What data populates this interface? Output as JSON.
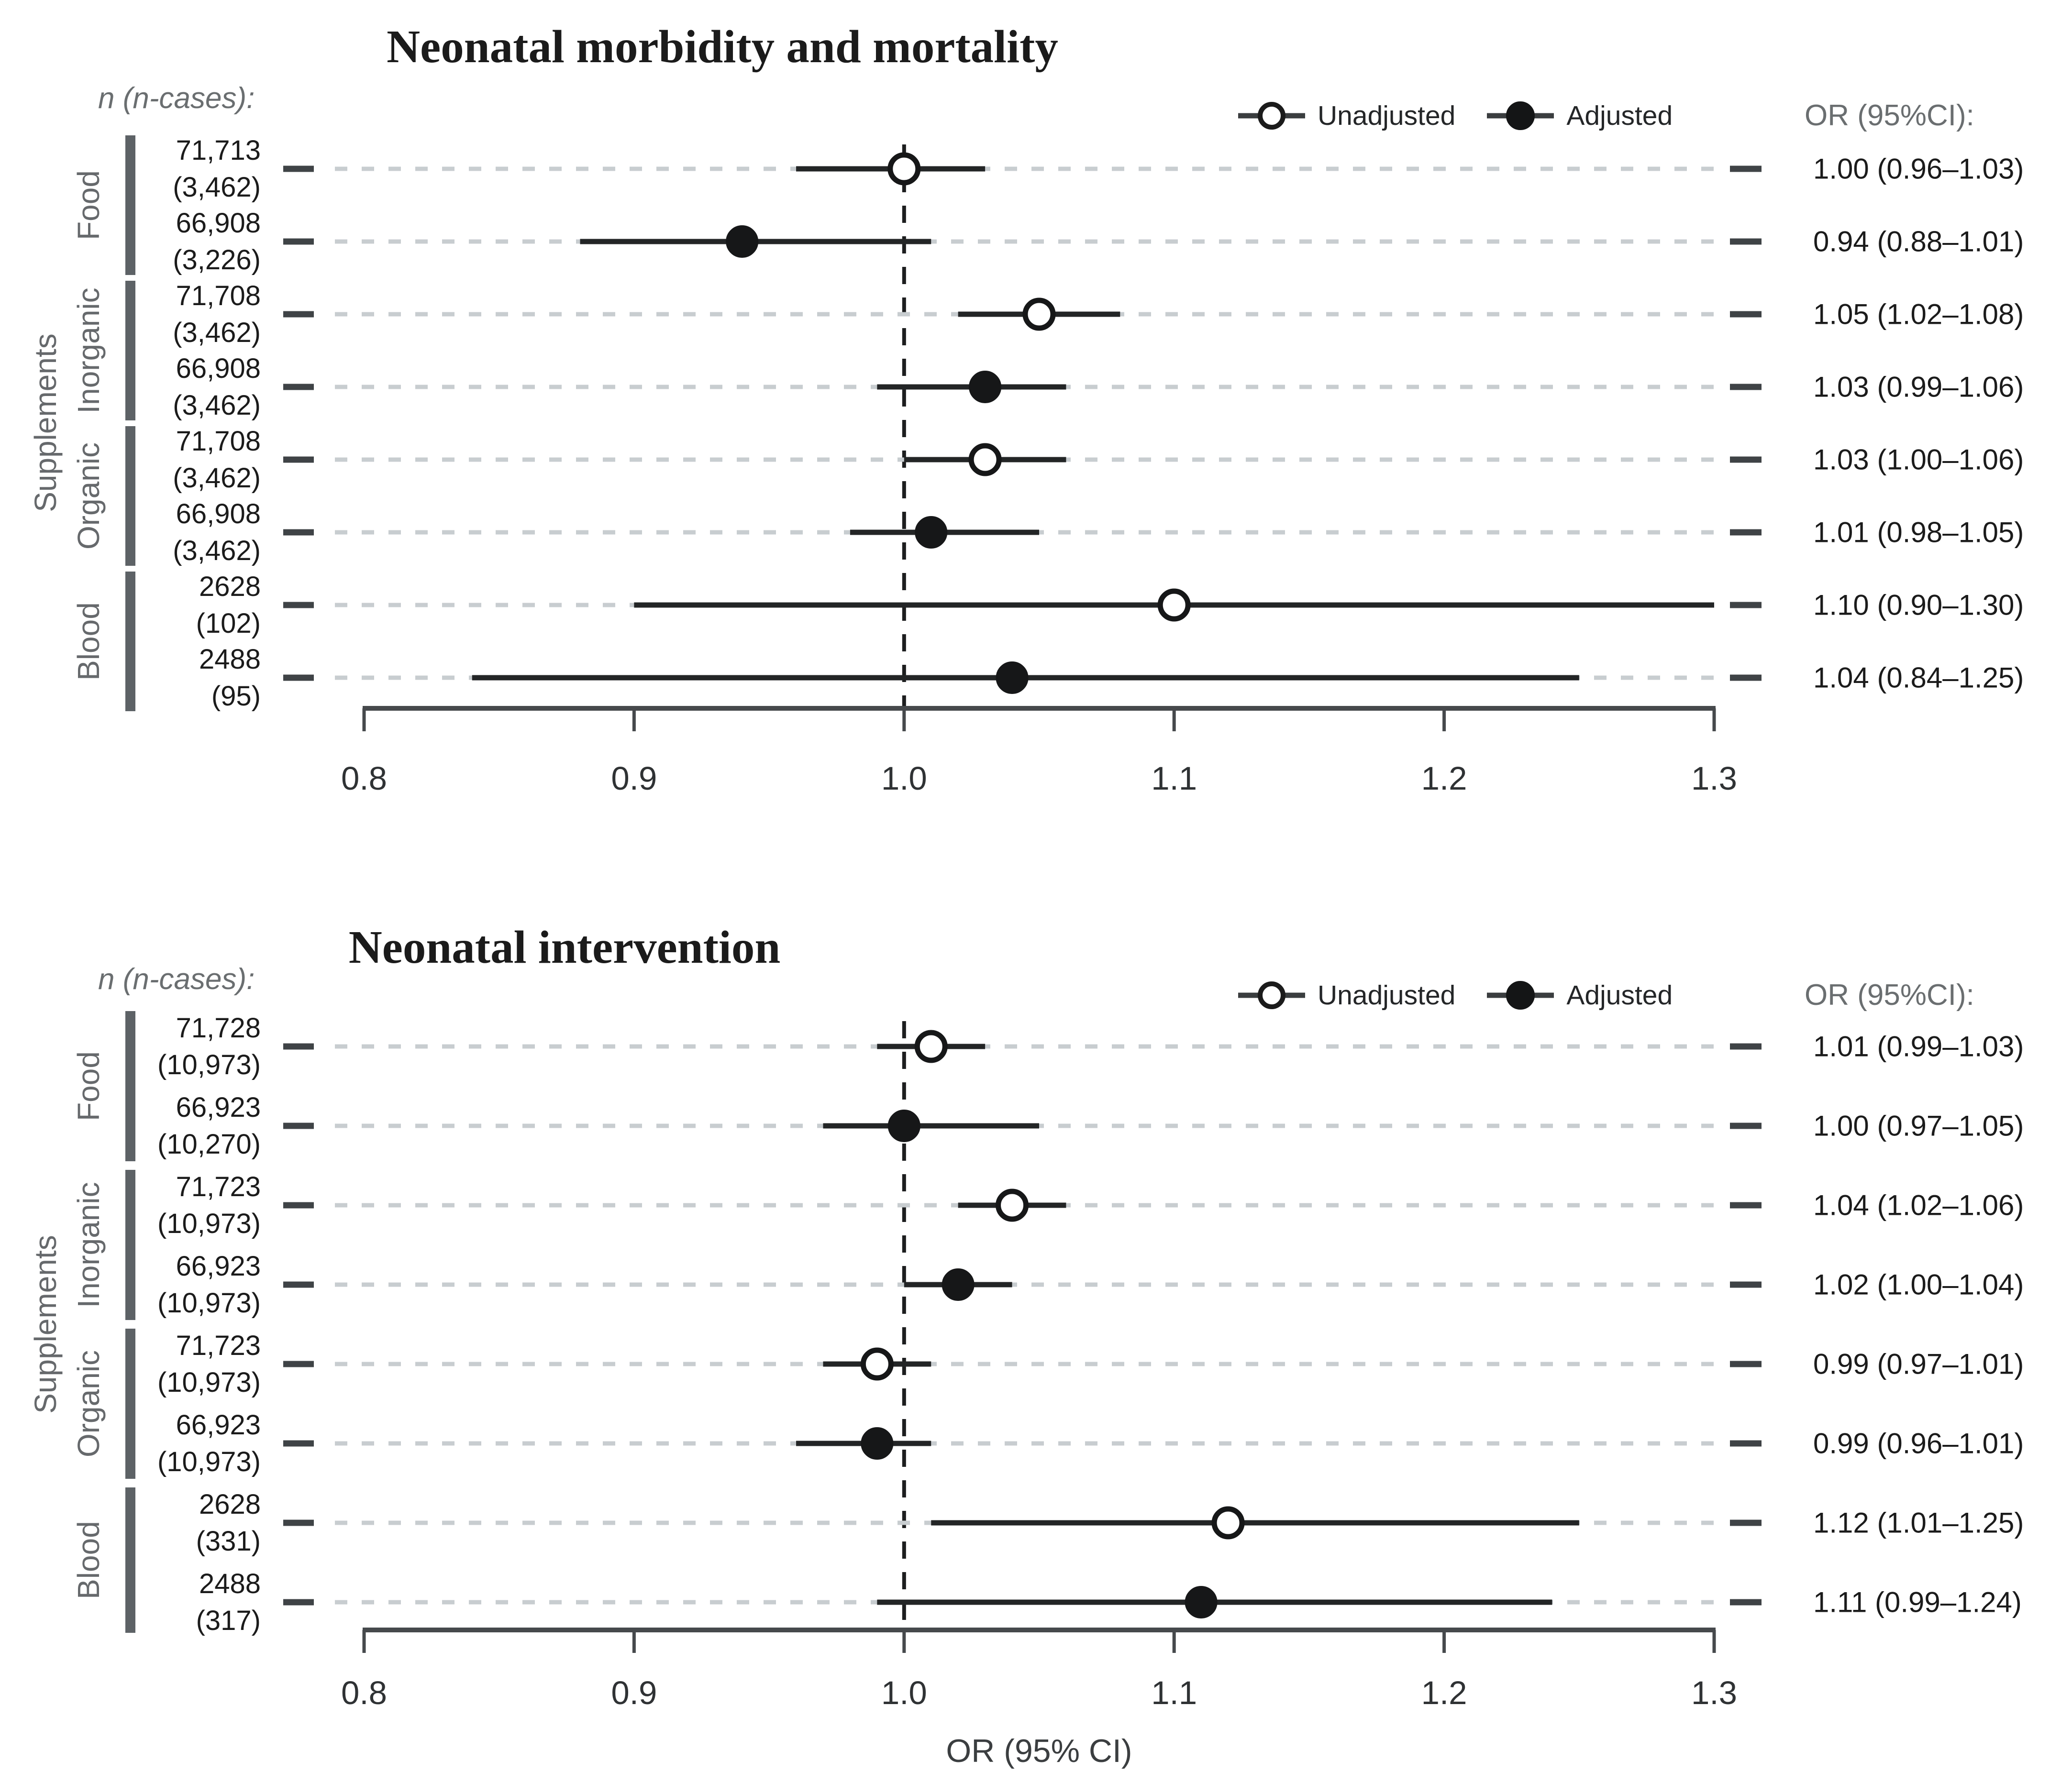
{
  "colors": {
    "text": "#1b1b1b",
    "muted_label": "#6a6e70",
    "grid_dotted": "#c8cdd0",
    "group_bar": "#5d6266",
    "axis": "#46494c",
    "marker": "#161718"
  },
  "chart_data": [
    {
      "type": "forest",
      "title": "Neonatal morbidity and mortality",
      "left_header": "n (n-cases):",
      "right_header": "OR (95%CI):",
      "side_label": "Supplements",
      "legend": {
        "unadjusted": "Unadjusted",
        "adjusted": "Adjusted"
      },
      "groups": [
        "Food",
        "Inorganic",
        "Organic",
        "Blood"
      ],
      "x_ticks": [
        "0.8",
        "0.9",
        "1.0",
        "1.1",
        "1.2",
        "1.3"
      ],
      "xlim": [
        0.8,
        1.3
      ],
      "ref_line": 1.0,
      "xlabel": "",
      "rows": [
        {
          "group": "Food",
          "n": "71,713",
          "n_cases": "(3,462)",
          "series": "Unadjusted",
          "or": 1.0,
          "ci_low": 0.96,
          "ci_high": 1.03,
          "or_label": "1.00 (0.96–1.03)"
        },
        {
          "group": "Food",
          "n": "66,908",
          "n_cases": "(3,226)",
          "series": "Adjusted",
          "or": 0.94,
          "ci_low": 0.88,
          "ci_high": 1.01,
          "or_label": "0.94 (0.88–1.01)"
        },
        {
          "group": "Inorganic",
          "n": "71,708",
          "n_cases": "(3,462)",
          "series": "Unadjusted",
          "or": 1.05,
          "ci_low": 1.02,
          "ci_high": 1.08,
          "or_label": "1.05 (1.02–1.08)"
        },
        {
          "group": "Inorganic",
          "n": "66,908",
          "n_cases": "(3,462)",
          "series": "Adjusted",
          "or": 1.03,
          "ci_low": 0.99,
          "ci_high": 1.06,
          "or_label": "1.03 (0.99–1.06)"
        },
        {
          "group": "Organic",
          "n": "71,708",
          "n_cases": "(3,462)",
          "series": "Unadjusted",
          "or": 1.03,
          "ci_low": 1.0,
          "ci_high": 1.06,
          "or_label": "1.03 (1.00–1.06)"
        },
        {
          "group": "Organic",
          "n": "66,908",
          "n_cases": "(3,462)",
          "series": "Adjusted",
          "or": 1.01,
          "ci_low": 0.98,
          "ci_high": 1.05,
          "or_label": "1.01 (0.98–1.05)"
        },
        {
          "group": "Blood",
          "n": "2628",
          "n_cases": "(102)",
          "series": "Unadjusted",
          "or": 1.1,
          "ci_low": 0.9,
          "ci_high": 1.3,
          "or_label": "1.10 (0.90–1.30)"
        },
        {
          "group": "Blood",
          "n": "2488",
          "n_cases": "(95)",
          "series": "Adjusted",
          "or": 1.04,
          "ci_low": 0.84,
          "ci_high": 1.25,
          "or_label": "1.04 (0.84–1.25)"
        }
      ]
    },
    {
      "type": "forest",
      "title": "Neonatal intervention",
      "left_header": "n (n-cases):",
      "right_header": "OR (95%CI):",
      "side_label": "Supplements",
      "legend": {
        "unadjusted": "Unadjusted",
        "adjusted": "Adjusted"
      },
      "groups": [
        "Food",
        "Inorganic",
        "Organic",
        "Blood"
      ],
      "x_ticks": [
        "0.8",
        "0.9",
        "1.0",
        "1.1",
        "1.2",
        "1.3"
      ],
      "xlim": [
        0.8,
        1.3
      ],
      "ref_line": 1.0,
      "xlabel": "OR (95% CI)",
      "rows": [
        {
          "group": "Food",
          "n": "71,728",
          "n_cases": "(10,973)",
          "series": "Unadjusted",
          "or": 1.01,
          "ci_low": 0.99,
          "ci_high": 1.03,
          "or_label": "1.01 (0.99–1.03)"
        },
        {
          "group": "Food",
          "n": "66,923",
          "n_cases": "(10,270)",
          "series": "Adjusted",
          "or": 1.0,
          "ci_low": 0.97,
          "ci_high": 1.05,
          "or_label": "1.00 (0.97–1.05)"
        },
        {
          "group": "Inorganic",
          "n": "71,723",
          "n_cases": "(10,973)",
          "series": "Unadjusted",
          "or": 1.04,
          "ci_low": 1.02,
          "ci_high": 1.06,
          "or_label": "1.04 (1.02–1.06)"
        },
        {
          "group": "Inorganic",
          "n": "66,923",
          "n_cases": "(10,973)",
          "series": "Adjusted",
          "or": 1.02,
          "ci_low": 1.0,
          "ci_high": 1.04,
          "or_label": "1.02 (1.00–1.04)"
        },
        {
          "group": "Organic",
          "n": "71,723",
          "n_cases": "(10,973)",
          "series": "Unadjusted",
          "or": 0.99,
          "ci_low": 0.97,
          "ci_high": 1.01,
          "or_label": "0.99 (0.97–1.01)"
        },
        {
          "group": "Organic",
          "n": "66,923",
          "n_cases": "(10,973)",
          "series": "Adjusted",
          "or": 0.99,
          "ci_low": 0.96,
          "ci_high": 1.01,
          "or_label": "0.99 (0.96–1.01)"
        },
        {
          "group": "Blood",
          "n": "2628",
          "n_cases": "(331)",
          "series": "Unadjusted",
          "or": 1.12,
          "ci_low": 1.01,
          "ci_high": 1.25,
          "or_label": "1.12 (1.01–1.25)"
        },
        {
          "group": "Blood",
          "n": "2488",
          "n_cases": "(317)",
          "series": "Adjusted",
          "or": 1.11,
          "ci_low": 0.99,
          "ci_high": 1.24,
          "or_label": "1.11 (0.99–1.24)"
        }
      ]
    }
  ]
}
